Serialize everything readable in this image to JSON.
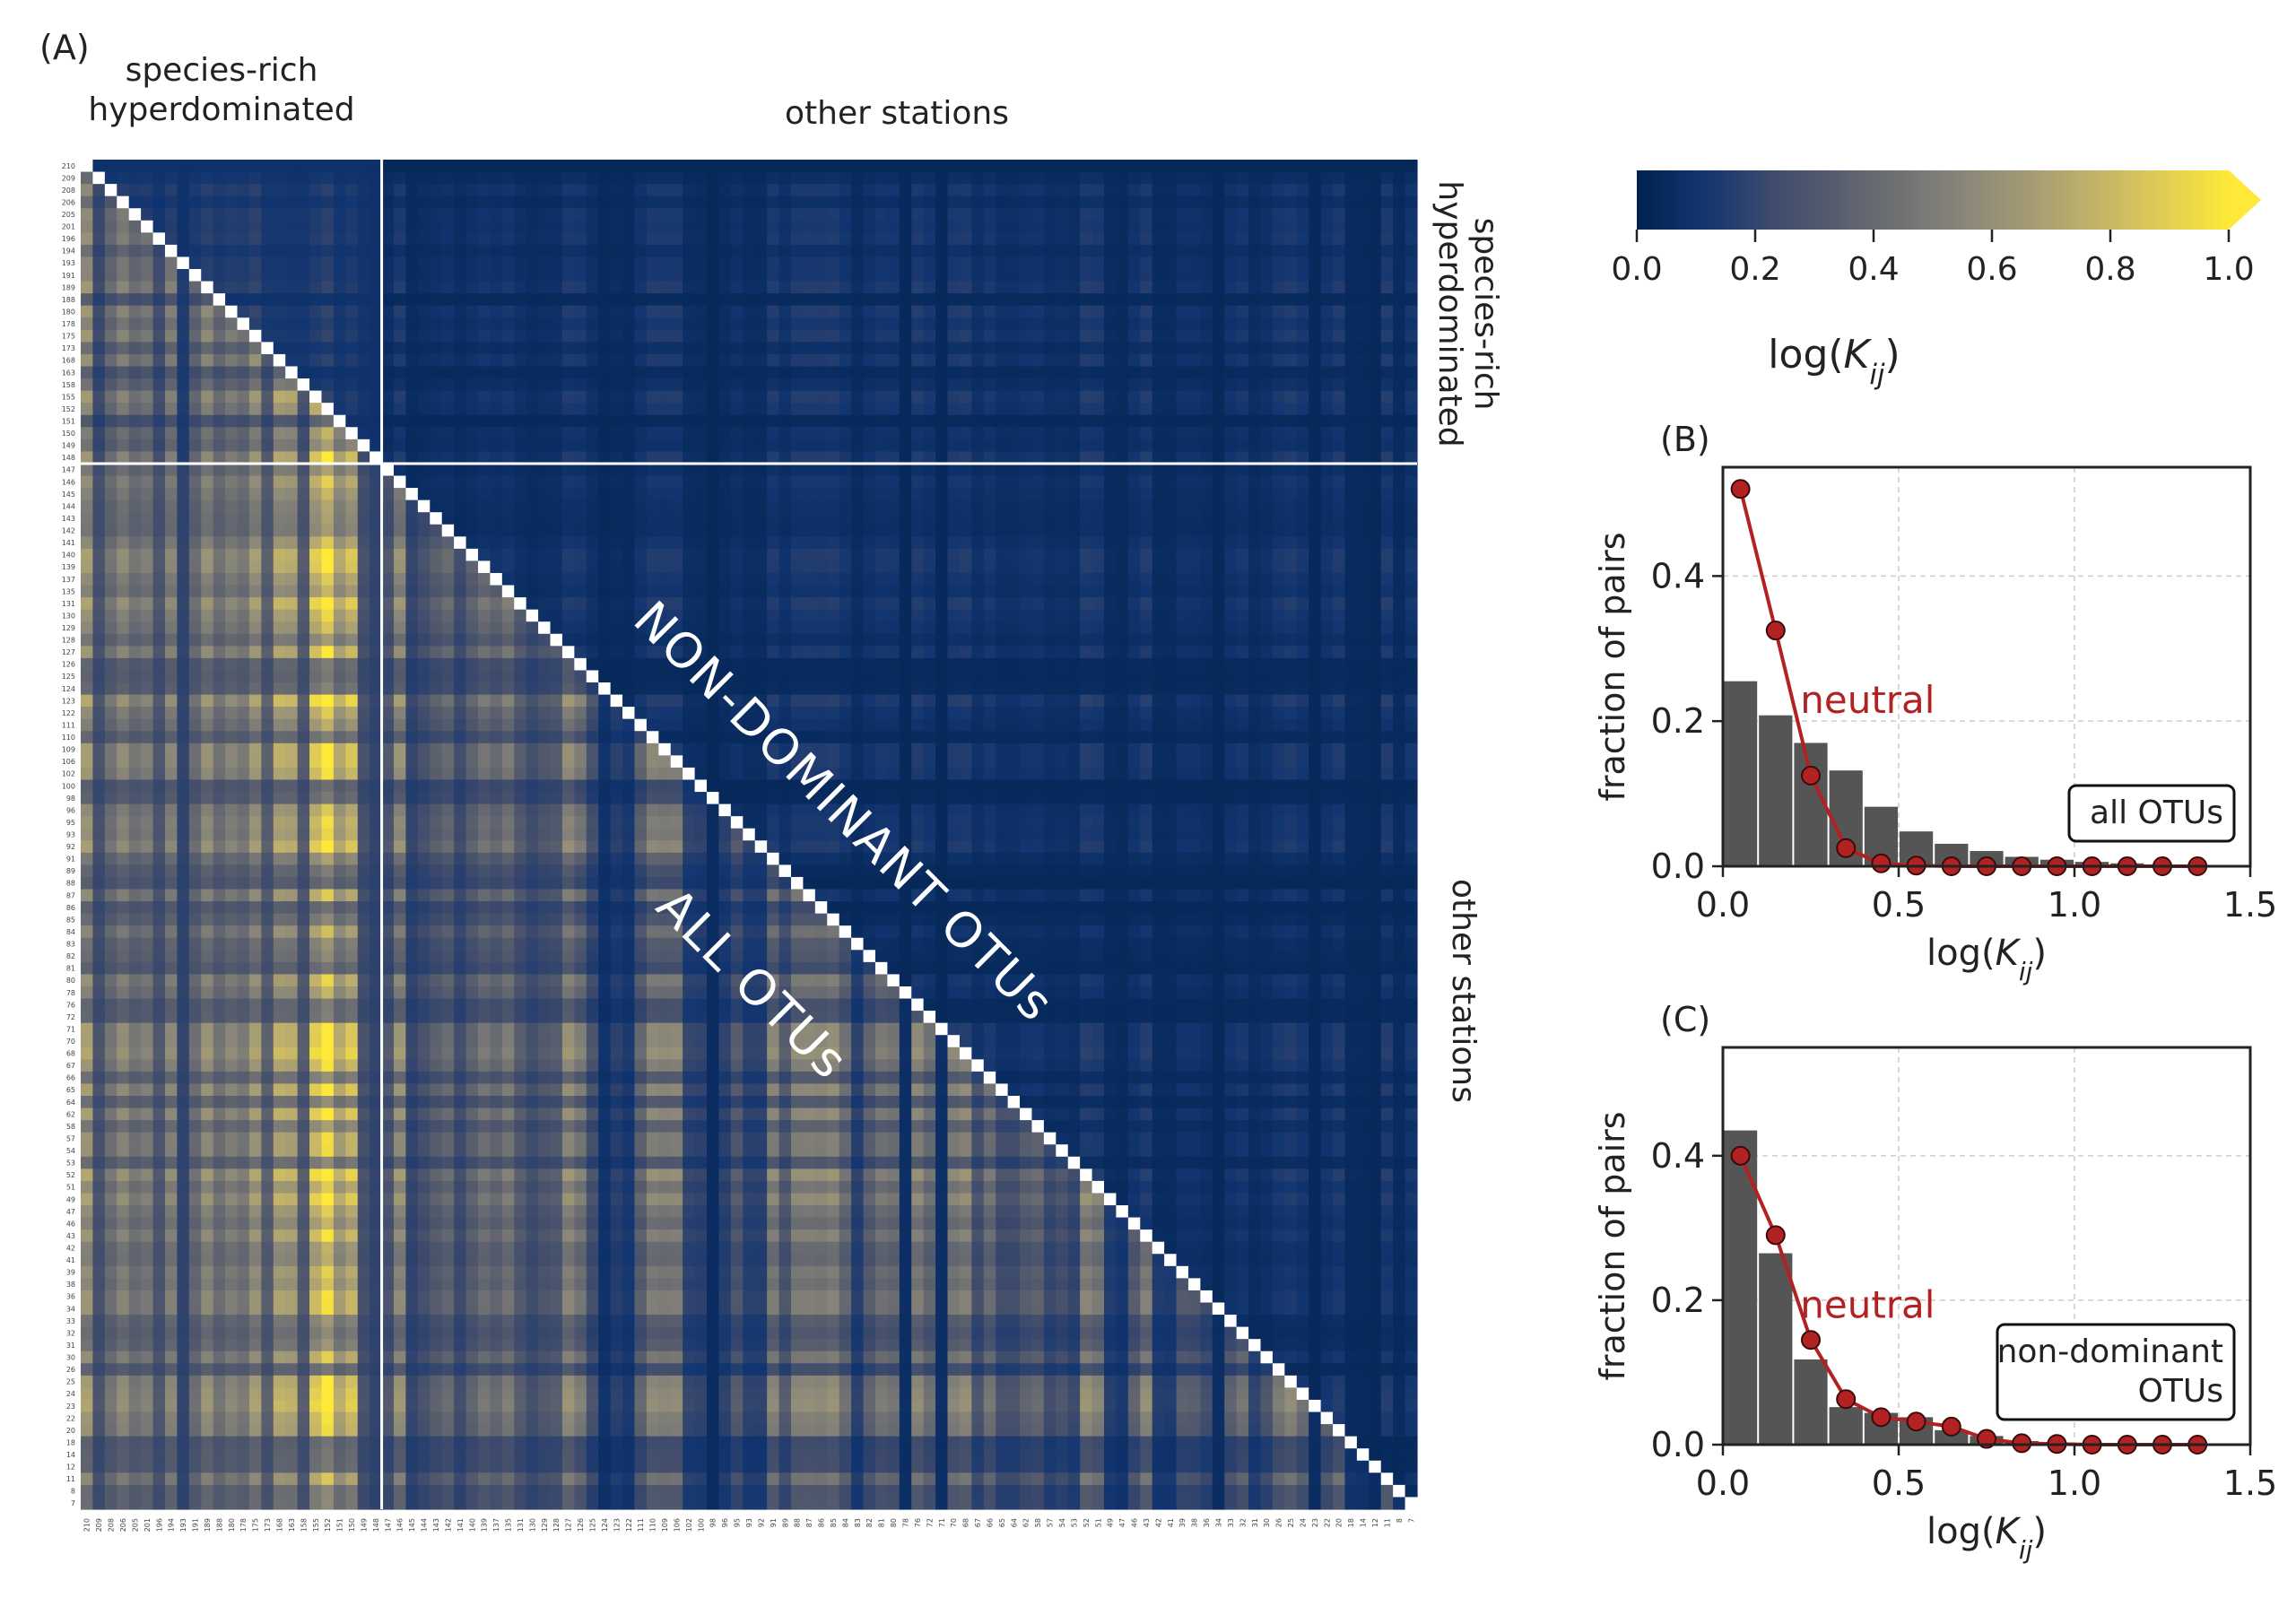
{
  "panel_labels": {
    "a": "(A)",
    "b": "(B)",
    "c": "(C)"
  },
  "heatmap": {
    "group_label_top_left": "species-rich\nhyperdominated",
    "group_label_top_right": "other stations",
    "group_label_side_top": "species-rich\nhyperdominated",
    "group_label_side_bottom": "other stations",
    "upper_triangle_label": "NON-DOMINANT OTUs",
    "lower_triangle_label": "ALL OTUs",
    "station_ids": [
      "210",
      "209",
      "208",
      "206",
      "205",
      "201",
      "196",
      "194",
      "193",
      "191",
      "189",
      "188",
      "180",
      "178",
      "175",
      "173",
      "168",
      "163",
      "158",
      "155",
      "152",
      "151",
      "150",
      "149",
      "148",
      "147",
      "146",
      "145",
      "144",
      "143",
      "142",
      "141",
      "140",
      "139",
      "137",
      "135",
      "131",
      "130",
      "129",
      "128",
      "127",
      "126",
      "125",
      "124",
      "123",
      "122",
      "111",
      "110",
      "109",
      "106",
      "102",
      "100",
      "98",
      "96",
      "95",
      "93",
      "92",
      "91",
      "89",
      "88",
      "87",
      "86",
      "85",
      "84",
      "83",
      "82",
      "81",
      "80",
      "78",
      "76",
      "72",
      "71",
      "70",
      "68",
      "67",
      "66",
      "65",
      "64",
      "62",
      "58",
      "57",
      "54",
      "53",
      "52",
      "51",
      "49",
      "47",
      "46",
      "43",
      "42",
      "41",
      "39",
      "38",
      "36",
      "34",
      "33",
      "32",
      "31",
      "30",
      "26",
      "25",
      "24",
      "23",
      "22",
      "20",
      "18",
      "14",
      "12",
      "11",
      "8",
      "7"
    ],
    "group_split_count": 25
  },
  "colorbar": {
    "ticks": [
      "0.0",
      "0.2",
      "0.4",
      "0.6",
      "0.8",
      "1.0"
    ],
    "label": "log(K_ij)",
    "colors": [
      "#00224e",
      "#123570",
      "#3b496c",
      "#575d6d",
      "#707173",
      "#8a8779",
      "#a59c74",
      "#c3b369",
      "#e1cc55",
      "#fee838"
    ]
  },
  "chart_data": [
    {
      "type": "bar",
      "panel": "(B)",
      "x": [
        0.05,
        0.15,
        0.25,
        0.35,
        0.45,
        0.55,
        0.65,
        0.75,
        0.85,
        0.95,
        1.05,
        1.15,
        1.25,
        1.35
      ],
      "values": [
        0.255,
        0.208,
        0.17,
        0.132,
        0.082,
        0.048,
        0.031,
        0.021,
        0.013,
        0.009,
        0.006,
        0.004,
        0.002,
        0.001
      ],
      "neutral": [
        0.52,
        0.325,
        0.125,
        0.025,
        0.004,
        0.001,
        0.0,
        0.0,
        0.0,
        0.0,
        0.0,
        0.0,
        0.0,
        0.0
      ],
      "series_label": "neutral",
      "box_label": "all OTUs",
      "xlabel": "log(K_ij)",
      "ylabel": "fraction of pairs",
      "xlim": [
        0,
        1.5
      ],
      "ylim": [
        0,
        0.55
      ],
      "xticks": [
        "0.0",
        "0.5",
        "1.0",
        "1.5"
      ],
      "yticks": [
        "0.0",
        "0.2",
        "0.4"
      ],
      "grid": true
    },
    {
      "type": "bar",
      "panel": "(C)",
      "x": [
        0.05,
        0.15,
        0.25,
        0.35,
        0.45,
        0.55,
        0.65,
        0.75,
        0.85,
        0.95,
        1.05,
        1.15,
        1.25,
        1.35
      ],
      "values": [
        0.435,
        0.265,
        0.118,
        0.052,
        0.044,
        0.038,
        0.02,
        0.012,
        0.005,
        0.003,
        0.002,
        0.001,
        0.001,
        0.0
      ],
      "neutral": [
        0.4,
        0.29,
        0.145,
        0.063,
        0.038,
        0.032,
        0.025,
        0.008,
        0.002,
        0.001,
        0.0,
        0.0,
        0.0,
        0.0
      ],
      "series_label": "neutral",
      "box_label": "non-dominant\nOTUs",
      "xlabel": "log(K_ij)",
      "ylabel": "fraction of pairs",
      "xlim": [
        0,
        1.5
      ],
      "ylim": [
        0,
        0.55
      ],
      "xticks": [
        "0.0",
        "0.5",
        "1.0",
        "1.5"
      ],
      "yticks": [
        "0.0",
        "0.2",
        "0.4"
      ],
      "grid": true
    }
  ]
}
